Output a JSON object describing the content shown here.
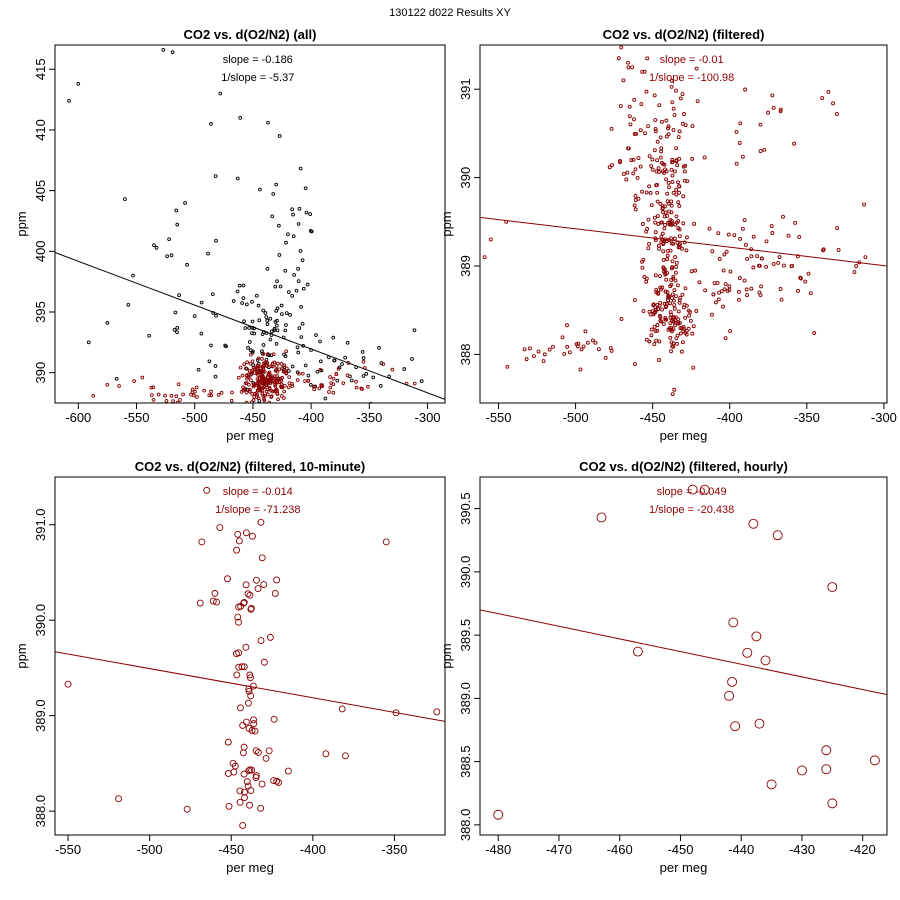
{
  "figure_title": "130122   d022   Results XY",
  "colors": {
    "black": "#000000",
    "red": "#8b0000"
  },
  "chart_data": [
    {
      "type": "scatter",
      "title": "CO2 vs. d(O2/N2) (all)",
      "xlabel": "per meg",
      "ylabel": "ppm",
      "xlim": [
        -620,
        -285
      ],
      "ylim": [
        387.5,
        417
      ],
      "xticks": [
        -600,
        -550,
        -500,
        -450,
        -400,
        -350,
        -300
      ],
      "yticks": [
        390,
        395,
        400,
        405,
        410,
        415
      ],
      "annotations": [
        "slope = -0.186",
        "1/slope = -5.37"
      ],
      "annotation_color": "#000000",
      "fit_line": {
        "x": [
          -620,
          -285
        ],
        "y": [
          399.9,
          387.8
        ],
        "color": "#000000"
      },
      "marker_radius": 1.4,
      "series": [
        {
          "name": "all",
          "color": "#000000",
          "seed": 11,
          "clusters": [
            {
              "n": 75,
              "cx": -440,
              "cy": 392.2,
              "sx": 14,
              "sy": 2.2
            },
            {
              "n": 45,
              "cx": -420,
              "cy": 397,
              "sx": 9,
              "sy": 4
            },
            {
              "n": 35,
              "cx": -375,
              "cy": 391,
              "sx": 22,
              "sy": 1.4
            },
            {
              "n": 30,
              "cx": -500,
              "cy": 396,
              "sx": 25,
              "sy": 3.5
            }
          ],
          "points": [
            [
              -600,
              413.8
            ],
            [
              -608,
              412.4
            ],
            [
              -527,
              416.6
            ],
            [
              -519,
              416.4
            ],
            [
              -478,
              413
            ],
            [
              -486,
              410.5
            ],
            [
              -461,
              411
            ],
            [
              -437,
              410.6
            ],
            [
              -427,
              409.5
            ],
            [
              -482,
              406.2
            ],
            [
              -463,
              406
            ],
            [
              -430,
              405.5
            ],
            [
              -444,
              405.1
            ],
            [
              -560,
              404.3
            ],
            [
              -515,
              402.2
            ],
            [
              -410,
              403.5
            ],
            [
              -404,
              403.2
            ],
            [
              -591,
              392.5
            ],
            [
              -575,
              394.1
            ],
            [
              -553,
              398
            ],
            [
              -535,
              400.5
            ],
            [
              -522,
              401
            ],
            [
              -567,
              389.5
            ],
            [
              -320,
              390.3
            ],
            [
              -333,
              389.7
            ],
            [
              -305,
              389.3
            ]
          ]
        },
        {
          "name": "filtered",
          "color": "#8b0000",
          "seed": 12,
          "clusters": [
            {
              "n": 200,
              "cx": -440,
              "cy": 389.4,
              "sx": 9,
              "sy": 0.9
            },
            {
              "n": 45,
              "cx": -395,
              "cy": 389.3,
              "sx": 28,
              "sy": 0.6
            },
            {
              "n": 30,
              "cx": -500,
              "cy": 388.3,
              "sx": 28,
              "sy": 0.4
            }
          ],
          "points": [
            [
              -552,
              389.3
            ],
            [
              -545,
              389.6
            ],
            [
              -520,
              388.1
            ],
            [
              -531,
              388.2
            ],
            [
              -510,
              388.2
            ],
            [
              -368,
              390.8
            ],
            [
              -355,
              390.9
            ],
            [
              -338,
              390.7
            ],
            [
              -318,
              389.1
            ],
            [
              -311,
              389.1
            ],
            [
              -575,
              389
            ],
            [
              -565,
              388.9
            ]
          ]
        }
      ]
    },
    {
      "type": "scatter",
      "title": "CO2 vs. d(O2/N2) (filtered)",
      "xlabel": "per meg",
      "ylabel": "ppm",
      "xlim": [
        -562,
        -298
      ],
      "ylim": [
        387.45,
        391.5
      ],
      "xticks": [
        -550,
        -500,
        -450,
        -400,
        -350,
        -300
      ],
      "yticks": [
        388,
        389,
        390,
        391
      ],
      "annotations": [
        "slope = -0.01",
        "1/slope = -100.98"
      ],
      "annotation_color": "#8b0000",
      "fit_line": {
        "x": [
          -562,
          -298
        ],
        "y": [
          389.55,
          389.0
        ],
        "color": "#8b0000"
      },
      "marker_radius": 1.5,
      "series": [
        {
          "name": "filtered",
          "color": "#8b0000",
          "seed": 21,
          "clusters": [
            {
              "n": 150,
              "cx": -441,
              "cy": 389.2,
              "sx": 7,
              "sy": 0.55
            },
            {
              "n": 80,
              "cx": -438,
              "cy": 388.35,
              "sx": 9,
              "sy": 0.18
            },
            {
              "n": 70,
              "cx": -437,
              "cy": 390.25,
              "sx": 7,
              "sy": 0.45
            },
            {
              "n": 60,
              "cx": -458,
              "cy": 390.3,
              "sx": 9,
              "sy": 0.6
            },
            {
              "n": 55,
              "cx": -405,
              "cy": 388.8,
              "sx": 20,
              "sy": 0.35
            },
            {
              "n": 40,
              "cx": -365,
              "cy": 389.1,
              "sx": 28,
              "sy": 0.25
            },
            {
              "n": 30,
              "cx": -502,
              "cy": 388.05,
              "sx": 22,
              "sy": 0.12
            },
            {
              "n": 15,
              "cx": -380,
              "cy": 390.6,
              "sx": 20,
              "sy": 0.25
            }
          ],
          "points": [
            [
              -472,
              391.35
            ],
            [
              -466,
              391.3
            ],
            [
              -469,
              391.1
            ],
            [
              -555,
              389.3
            ],
            [
              -559,
              389.1
            ],
            [
              -545,
              389.5
            ],
            [
              -520,
              388
            ],
            [
              -527,
              387.98
            ],
            [
              -340,
              390.9
            ],
            [
              -336,
              390.97
            ],
            [
              -333,
              390.84
            ],
            [
              -312,
              389.1
            ],
            [
              -318,
              389.0
            ],
            [
              -437,
              387.55
            ],
            [
              -436,
              387.6
            ],
            [
              -380,
              390.3
            ],
            [
              -367,
              390.75
            ]
          ]
        }
      ]
    },
    {
      "type": "scatter",
      "title": "CO2 vs. d(O2/N2) (filtered, 10-minute)",
      "xlabel": "per meg",
      "ylabel": "ppm",
      "xlim": [
        -558,
        -319
      ],
      "ylim": [
        387.75,
        391.5
      ],
      "xticks": [
        -550,
        -500,
        -450,
        -400,
        -350
      ],
      "yticks": [
        388.0,
        389.0,
        390.0,
        391.0
      ],
      "annotations": [
        "slope = -0.014",
        "1/slope = -71.238"
      ],
      "annotation_color": "#8b0000",
      "fit_line": {
        "x": [
          -558,
          -319
        ],
        "y": [
          389.67,
          388.94
        ],
        "color": "#8b0000"
      },
      "marker_radius": 3,
      "series": [
        {
          "name": "10-minute",
          "color": "#8b0000",
          "seed": 31,
          "clusters": [
            {
              "n": 40,
              "cx": -441,
              "cy": 389.0,
              "sx": 6,
              "sy": 0.55
            },
            {
              "n": 20,
              "cx": -440,
              "cy": 390.4,
              "sx": 7,
              "sy": 0.3
            },
            {
              "n": 15,
              "cx": -437,
              "cy": 388.3,
              "sx": 6,
              "sy": 0.15
            }
          ],
          "points": [
            [
              -465,
              391.36
            ],
            [
              -457,
              390.97
            ],
            [
              -446,
              390.9
            ],
            [
              -445,
              390.83
            ],
            [
              -437,
              390.88
            ],
            [
              -468,
              390.82
            ],
            [
              -469,
              390.18
            ],
            [
              -461,
              390.2
            ],
            [
              -459,
              390.19
            ],
            [
              -423,
              390.28
            ],
            [
              -426,
              389.82
            ],
            [
              -415,
              388.42
            ],
            [
              -424,
              388.32
            ],
            [
              -421,
              388.3
            ],
            [
              -392,
              388.6
            ],
            [
              -380,
              388.58
            ],
            [
              -382,
              389.07
            ],
            [
              -355,
              390.82
            ],
            [
              -349,
              389.03
            ],
            [
              -324,
              389.04
            ],
            [
              -550,
              389.33
            ],
            [
              -519,
              388.13
            ],
            [
              -477,
              388.02
            ],
            [
              -443,
              387.85
            ],
            [
              -432,
              388.03
            ]
          ]
        }
      ]
    },
    {
      "type": "scatter",
      "title": "CO2 vs. d(O2/N2) (filtered, hourly)",
      "xlabel": "per meg",
      "ylabel": "ppm",
      "xlim": [
        -483,
        -416
      ],
      "ylim": [
        387.92,
        390.75
      ],
      "xticks": [
        -480,
        -470,
        -460,
        -450,
        -440,
        -430,
        -420
      ],
      "yticks": [
        388.0,
        388.5,
        389.0,
        389.5,
        390.0,
        390.5
      ],
      "annotations": [
        "slope = -0.049",
        "1/slope = -20.438"
      ],
      "annotation_color": "#8b0000",
      "fit_line": {
        "x": [
          -483,
          -416
        ],
        "y": [
          389.7,
          389.03
        ],
        "color": "#8b0000"
      },
      "marker_radius": 4.5,
      "series": [
        {
          "name": "hourly",
          "color": "#8b0000",
          "seed": 41,
          "clusters": [],
          "points": [
            [
              -480,
              388.08
            ],
            [
              -463,
              390.43
            ],
            [
              -457,
              389.37
            ],
            [
              -448,
              390.65
            ],
            [
              -446,
              390.65
            ],
            [
              -442,
              389.02
            ],
            [
              -441.5,
              389.13
            ],
            [
              -441.3,
              389.6
            ],
            [
              -441,
              388.78
            ],
            [
              -438,
              390.38
            ],
            [
              -437.5,
              389.49
            ],
            [
              -437,
              388.8
            ],
            [
              -439,
              389.36
            ],
            [
              -436,
              389.3
            ],
            [
              -435,
              388.32
            ],
            [
              -434,
              390.29
            ],
            [
              -430,
              388.43
            ],
            [
              -426,
              388.59
            ],
            [
              -426,
              388.44
            ],
            [
              -425,
              389.88
            ],
            [
              -425,
              388.17
            ],
            [
              -418,
              388.51
            ]
          ]
        }
      ]
    }
  ]
}
